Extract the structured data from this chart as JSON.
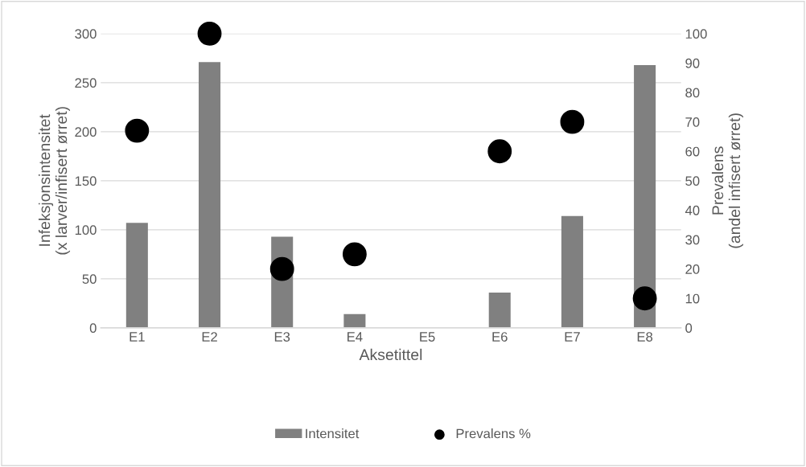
{
  "chart_data": {
    "type": "bar",
    "xlabel": "Aksetittel",
    "ylabel": "Infeksjonsintensitet\n(x larver/infisert ørret)",
    "y2label": "Prevalens\n(andel infisert ørret)",
    "categories": [
      "E1",
      "E2",
      "E3",
      "E4",
      "E5",
      "E6",
      "E7",
      "E8"
    ],
    "series": [
      {
        "name": "Intensitet",
        "color": "#808080",
        "values": [
          107,
          271,
          93,
          14,
          0,
          36,
          114,
          268
        ]
      },
      {
        "name": "Prevalens %",
        "type": "scatter",
        "axis": "y2",
        "color": "#000000",
        "marker": "circle",
        "values": [
          67,
          100,
          20,
          25,
          null,
          60,
          70,
          10
        ]
      }
    ],
    "ylim": [
      0,
      300
    ],
    "yticks": [
      0,
      50,
      100,
      150,
      200,
      250,
      300
    ],
    "y2lim": [
      0,
      100
    ],
    "y2ticks": [
      0,
      10,
      20,
      30,
      40,
      50,
      60,
      70,
      80,
      90,
      100
    ],
    "grid": "y",
    "legend": "bottom"
  }
}
